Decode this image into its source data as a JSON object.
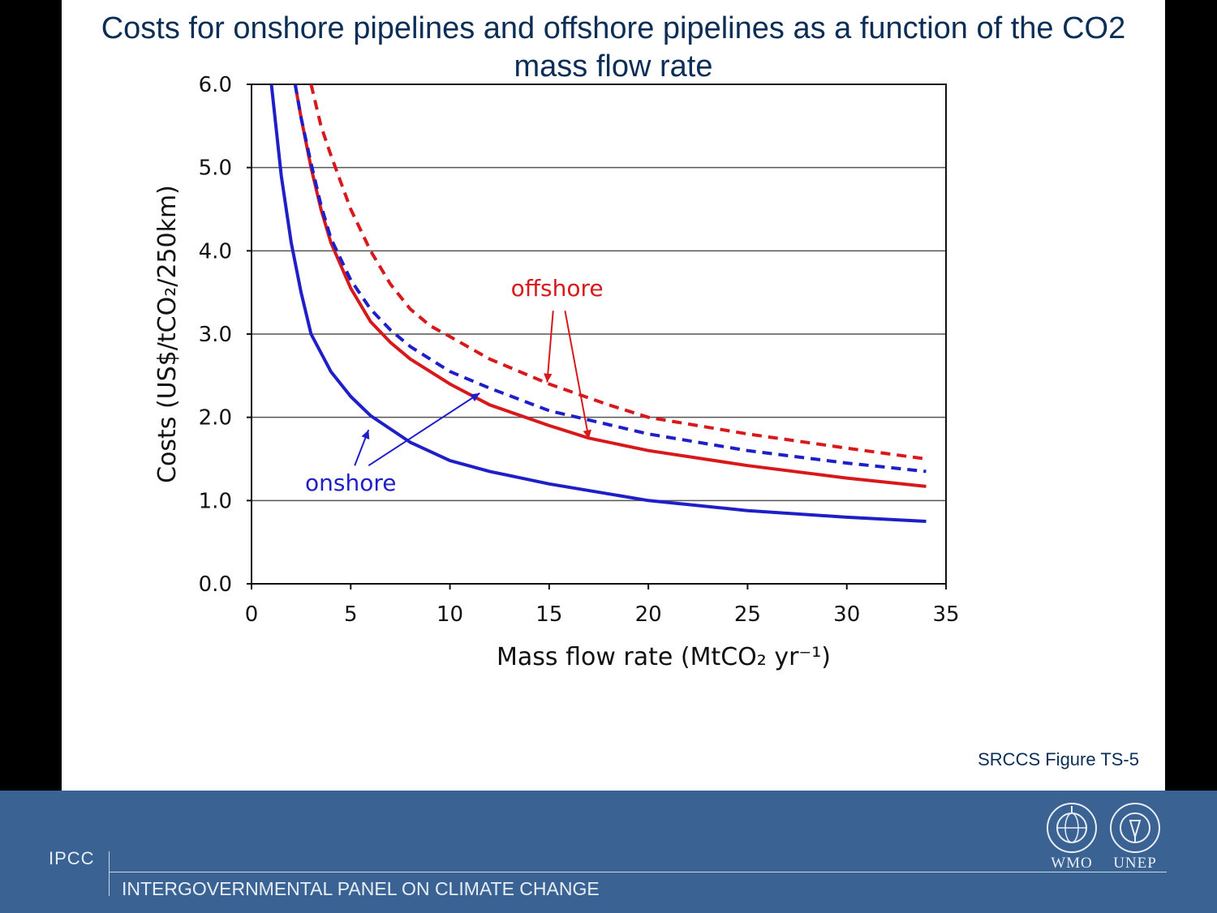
{
  "slide": {
    "title": "Costs for onshore pipelines and offshore pipelines as a function of the CO2 mass flow rate",
    "caption": "SRCCS Figure TS-5"
  },
  "footer": {
    "short_name": "IPCC",
    "organization": "INTERGOVERNMENTAL PANEL ON CLIMATE CHANGE",
    "logos": [
      {
        "name": "WMO",
        "icon": "wmo-emblem-icon"
      },
      {
        "name": "UNEP",
        "icon": "unep-emblem-icon"
      }
    ],
    "colors": {
      "background": "#3a6293",
      "text": "#e8eef6"
    }
  },
  "chart_data": {
    "type": "line",
    "title": "",
    "xlabel": "Mass flow rate (MtCO₂ yr⁻¹)",
    "ylabel": "Costs (US$/tCO₂/250km)",
    "xlim": [
      0,
      35
    ],
    "ylim": [
      0,
      6
    ],
    "x_ticks": [
      "0",
      "5",
      "10",
      "15",
      "20",
      "25",
      "30",
      "35"
    ],
    "y_ticks": [
      "0.0",
      "1.0",
      "2.0",
      "3.0",
      "4.0",
      "5.0",
      "6.0"
    ],
    "grid": "horizontal",
    "annotations": [
      {
        "text": "offshore",
        "color": "#d7191c"
      },
      {
        "text": "onshore",
        "color": "#1f1fc8"
      }
    ],
    "series": [
      {
        "line": "onshore-solid",
        "color": "#1f1fc8",
        "dash": false,
        "x": [
          1.0,
          1.5,
          2,
          2.5,
          3,
          4,
          5,
          6,
          8,
          10,
          12,
          15,
          20,
          25,
          30,
          34
        ],
        "y": [
          6.0,
          4.9,
          4.1,
          3.5,
          3.0,
          2.55,
          2.25,
          2.02,
          1.7,
          1.48,
          1.35,
          1.2,
          1.0,
          0.88,
          0.8,
          0.75
        ]
      },
      {
        "line": "offshore-solid",
        "color": "#d7191c",
        "dash": false,
        "x": [
          2.2,
          2.5,
          3,
          3.5,
          4,
          5,
          6,
          7,
          8,
          10,
          12,
          15,
          17,
          20,
          25,
          30,
          34
        ],
        "y": [
          6.0,
          5.6,
          5.0,
          4.5,
          4.1,
          3.55,
          3.15,
          2.9,
          2.7,
          2.4,
          2.15,
          1.9,
          1.75,
          1.6,
          1.42,
          1.27,
          1.17
        ]
      },
      {
        "line": "onshore-dashed",
        "color": "#1f1fc8",
        "dash": true,
        "x": [
          2.2,
          2.5,
          3,
          3.5,
          4,
          5,
          6,
          7,
          8,
          10,
          12,
          15,
          20,
          25,
          30,
          34
        ],
        "y": [
          6.0,
          5.6,
          5.05,
          4.55,
          4.15,
          3.65,
          3.3,
          3.05,
          2.85,
          2.55,
          2.35,
          2.08,
          1.8,
          1.6,
          1.45,
          1.35
        ]
      },
      {
        "line": "offshore-dashed",
        "color": "#d7191c",
        "dash": true,
        "x": [
          3.0,
          3.5,
          4,
          5,
          6,
          7,
          8,
          9,
          10,
          12,
          15,
          18,
          20,
          25,
          30,
          34
        ],
        "y": [
          6.0,
          5.5,
          5.15,
          4.5,
          4.0,
          3.6,
          3.3,
          3.1,
          2.97,
          2.7,
          2.4,
          2.15,
          2.0,
          1.8,
          1.63,
          1.5
        ]
      }
    ]
  }
}
